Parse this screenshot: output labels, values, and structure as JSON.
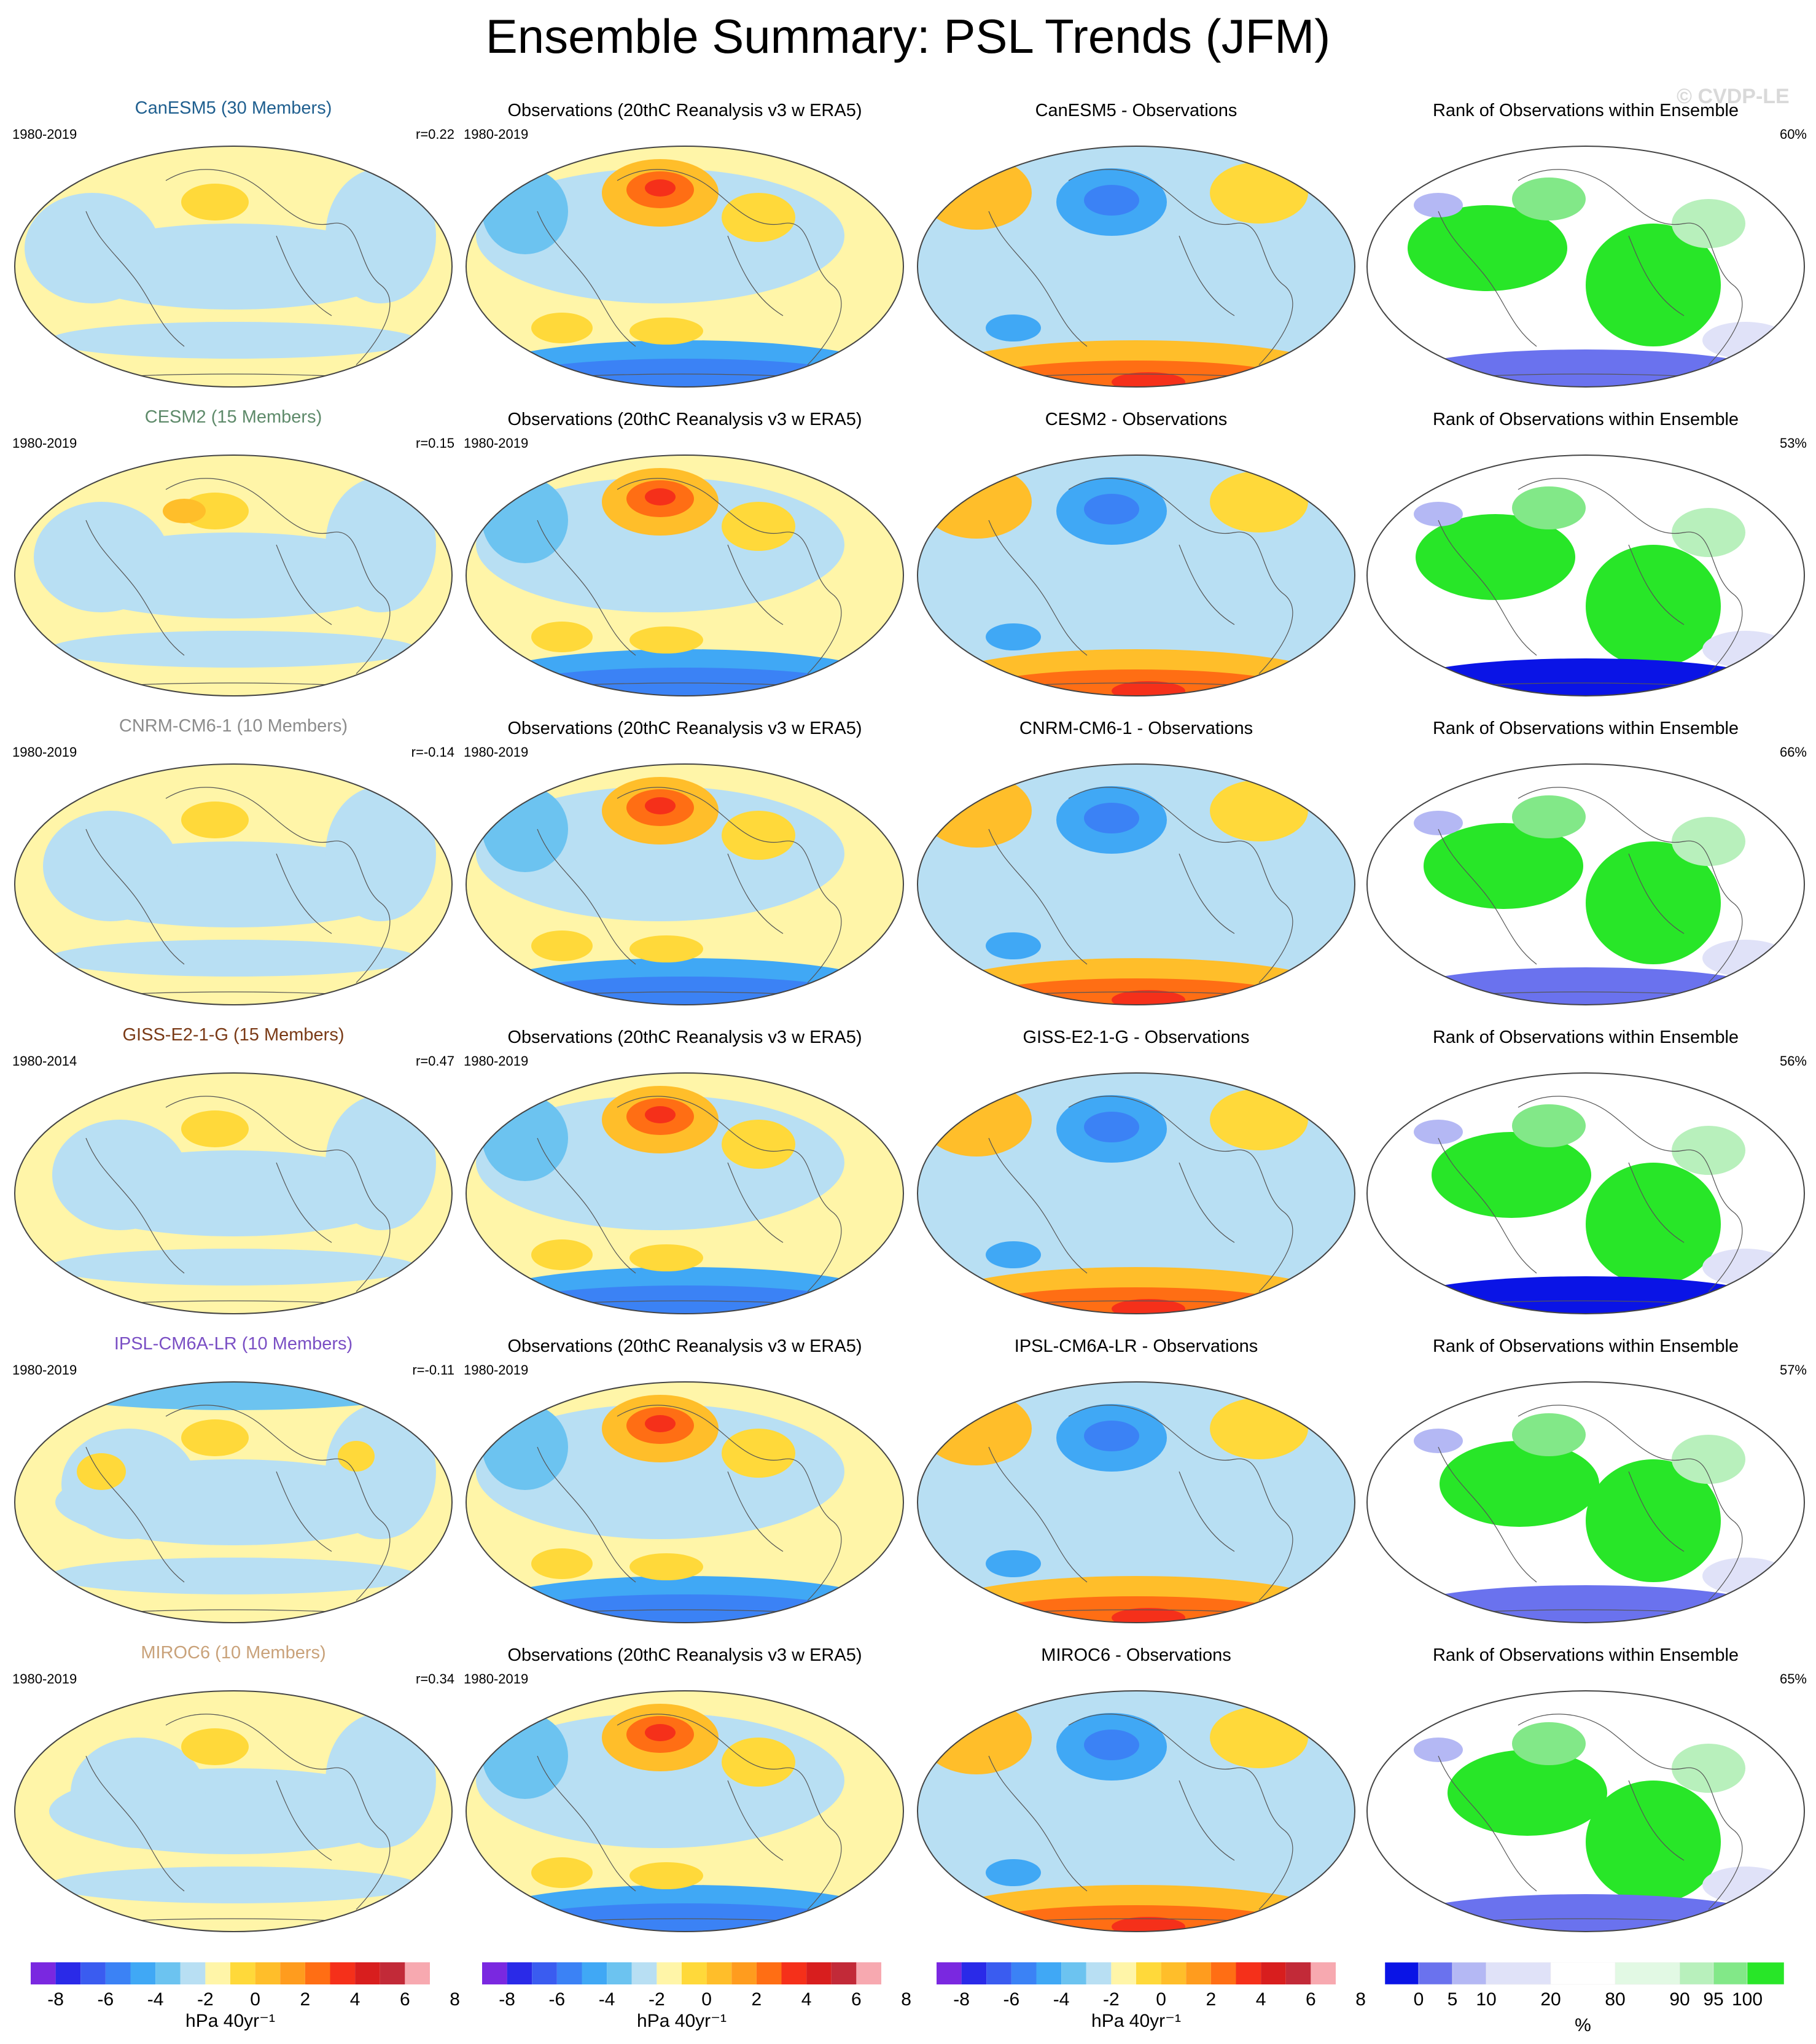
{
  "title": "Ensemble Summary: PSL Trends (JFM)",
  "watermark": "© CVDP-LE",
  "colors": {
    "trend_palette": [
      "#7a28e0",
      "#2a2ae8",
      "#3a5cf0",
      "#3b82f5",
      "#40a8f5",
      "#6cc3f0",
      "#b8dff3",
      "#fff5a8",
      "#ffd93a",
      "#ffbe2a",
      "#ff9c1e",
      "#ff6e14",
      "#f5301a",
      "#d81e1e",
      "#c22a38",
      "#f7a9b0"
    ],
    "rank_palette": [
      "#0a14e6",
      "#6a72ee",
      "#b4b8f4",
      "#e0e2f8",
      "#ffffff",
      "#e2f9e4",
      "#b8f0bc",
      "#82e888",
      "#28e628"
    ],
    "model_title_colors": {
      "CanESM5": "#1f5f8f",
      "CESM2": "#5e8a6a",
      "CNRM-CM6-1": "#8c8c8c",
      "GISS-E2-1-G": "#7a3a16",
      "IPSL-CM6A-LR": "#7a4fc4",
      "MIROC6": "#c9a27a"
    }
  },
  "rows": [
    {
      "model_title": "CanESM5 (30 Members)",
      "model_key": "CanESM5",
      "model_years": "1980-2019",
      "pattern_corr": "r=0.22",
      "obs_title": "Observations (20thC Reanalysis v3 w ERA5)",
      "obs_years": "1980-2019",
      "diff_title": "CanESM5 - Observations",
      "rank_title": "Rank of Observations within Ensemble",
      "rank_pct": "60%"
    },
    {
      "model_title": "CESM2 (15 Members)",
      "model_key": "CESM2",
      "model_years": "1980-2019",
      "pattern_corr": "r=0.15",
      "obs_title": "Observations (20thC Reanalysis v3 w ERA5)",
      "obs_years": "1980-2019",
      "diff_title": "CESM2 - Observations",
      "rank_title": "Rank of Observations within Ensemble",
      "rank_pct": "53%"
    },
    {
      "model_title": "CNRM-CM6-1 (10 Members)",
      "model_key": "CNRM-CM6-1",
      "model_years": "1980-2019",
      "pattern_corr": "r=-0.14",
      "obs_title": "Observations (20thC Reanalysis v3 w ERA5)",
      "obs_years": "1980-2019",
      "diff_title": "CNRM-CM6-1 - Observations",
      "rank_title": "Rank of Observations within Ensemble",
      "rank_pct": "66%"
    },
    {
      "model_title": "GISS-E2-1-G (15 Members)",
      "model_key": "GISS-E2-1-G",
      "model_years": "1980-2014",
      "pattern_corr": "r=0.47",
      "obs_title": "Observations (20thC Reanalysis v3 w ERA5)",
      "obs_years": "1980-2019",
      "diff_title": "GISS-E2-1-G - Observations",
      "rank_title": "Rank of Observations within Ensemble",
      "rank_pct": "56%"
    },
    {
      "model_title": "IPSL-CM6A-LR (10 Members)",
      "model_key": "IPSL-CM6A-LR",
      "model_years": "1980-2019",
      "pattern_corr": "r=-0.11",
      "obs_title": "Observations (20thC Reanalysis v3 w ERA5)",
      "obs_years": "1980-2019",
      "diff_title": "IPSL-CM6A-LR - Observations",
      "rank_title": "Rank of Observations within Ensemble",
      "rank_pct": "57%"
    },
    {
      "model_title": "MIROC6 (10 Members)",
      "model_key": "MIROC6",
      "model_years": "1980-2019",
      "pattern_corr": "r=0.34",
      "obs_title": "Observations (20thC Reanalysis v3 w ERA5)",
      "obs_years": "1980-2019",
      "diff_title": "MIROC6 - Observations",
      "rank_title": "Rank of Observations within Ensemble",
      "rank_pct": "65%"
    }
  ],
  "colorbars": {
    "trend_ticks": [
      "-8",
      "-6",
      "-4",
      "-2",
      "0",
      "2",
      "4",
      "6",
      "8"
    ],
    "trend_unit": "hPa 40yr⁻¹",
    "rank_ticks": [
      "0",
      "5",
      "10",
      "20",
      "80",
      "90",
      "95",
      "100"
    ],
    "rank_unit": "%"
  }
}
